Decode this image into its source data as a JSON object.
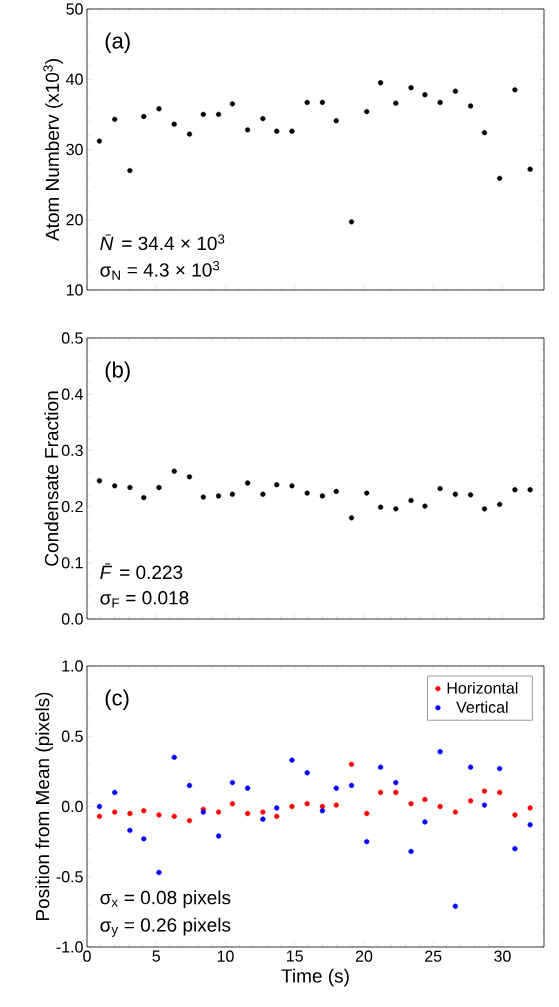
{
  "chart_data": [
    {
      "type": "scatter",
      "ylabel": "Atom Numberv (x10$^{3}$)",
      "annotations": [
        "(a)",
        "*N̄* = 34.4 × 10$^{3}$",
        "σ$_{N}$ = 4.3 × 10$^{3}$"
      ],
      "marker": "circle",
      "tick_labels": "y",
      "x": [
        0.9,
        2.0,
        3.1,
        4.1,
        5.2,
        6.3,
        7.4,
        8.4,
        9.5,
        10.5,
        11.6,
        12.7,
        13.7,
        14.8,
        15.9,
        17.0,
        18.0,
        19.1,
        20.2,
        21.2,
        22.3,
        23.4,
        24.4,
        25.5,
        26.6,
        27.7,
        28.7,
        29.8,
        30.9,
        32.0
      ],
      "xlim": [
        0,
        33
      ],
      "xticks": [
        0,
        5,
        10,
        15,
        20,
        25,
        30
      ],
      "ylim": [
        10,
        50
      ],
      "yticks": [
        10,
        20,
        30,
        40,
        50
      ],
      "series": [
        {
          "color": "#000000",
          "values": [
            31.2,
            34.3,
            27.0,
            34.7,
            35.8,
            33.6,
            32.2,
            35.0,
            35.0,
            36.5,
            32.8,
            34.4,
            32.6,
            32.6,
            36.7,
            36.7,
            34.1,
            19.7,
            35.4,
            39.5,
            36.6,
            38.8,
            37.8,
            36.7,
            38.3,
            36.2,
            32.4,
            25.9,
            38.5,
            27.2
          ]
        }
      ]
    },
    {
      "type": "scatter",
      "ylabel": "Condensate Fraction",
      "annotations": [
        "(b)",
        "*F̄* = 0.223",
        "σ$_{F}$ = 0.018"
      ],
      "marker": "circle",
      "tick_labels": "y",
      "x": [
        0.9,
        2.0,
        3.1,
        4.1,
        5.2,
        6.3,
        7.4,
        8.4,
        9.5,
        10.5,
        11.6,
        12.7,
        13.7,
        14.8,
        15.9,
        17.0,
        18.0,
        19.1,
        20.2,
        21.2,
        22.3,
        23.4,
        24.4,
        25.5,
        26.6,
        27.7,
        28.7,
        29.8,
        30.9,
        32.0
      ],
      "xlim": [
        0,
        33
      ],
      "xticks": [
        0,
        5,
        10,
        15,
        20,
        25,
        30
      ],
      "ylim": [
        0,
        0.5
      ],
      "yticks": [
        {
          "value": 0,
          "label": "0.0"
        },
        0.1,
        0.2,
        0.3,
        0.4,
        0.5
      ],
      "series": [
        {
          "color": "#000000",
          "values": [
            0.246,
            0.237,
            0.234,
            0.216,
            0.234,
            0.263,
            0.253,
            0.217,
            0.219,
            0.222,
            0.242,
            0.222,
            0.239,
            0.237,
            0.224,
            0.219,
            0.227,
            0.18,
            0.224,
            0.199,
            0.196,
            0.211,
            0.201,
            0.232,
            0.222,
            0.221,
            0.196,
            0.204,
            0.23,
            0.23
          ]
        }
      ]
    },
    {
      "type": "scatter",
      "xlabel": "Time (s)",
      "ylabel": "Position from Mean (pixels)",
      "annotations": [
        "(c)",
        "σ$_{x}$ = 0.08 pixels",
        "σ$_{y}$ = 0.26 pixels"
      ],
      "marker": "circle",
      "legend": "top right",
      "x": [
        0.9,
        2.0,
        3.1,
        4.1,
        5.2,
        6.3,
        7.4,
        8.4,
        9.5,
        10.5,
        11.6,
        12.7,
        13.7,
        14.8,
        15.9,
        17.0,
        18.0,
        19.1,
        20.2,
        21.2,
        22.3,
        23.4,
        24.4,
        25.5,
        26.6,
        27.7,
        28.7,
        29.8,
        30.9,
        32.0
      ],
      "xlim": [
        0,
        33
      ],
      "xticks": [
        0,
        5,
        10,
        15,
        20,
        25,
        30
      ],
      "ylim": [
        -1,
        1
      ],
      "yticks": [
        {
          "value": -1,
          "label": "-1.0"
        },
        -0.5,
        {
          "value": 0,
          "label": "0.0"
        },
        0.5,
        {
          "value": 1,
          "label": "1.0"
        }
      ],
      "series": [
        {
          "name": "Horizontal",
          "color": "#ff0000",
          "values": [
            -0.07,
            -0.04,
            -0.05,
            -0.03,
            -0.06,
            -0.07,
            -0.1,
            -0.02,
            -0.04,
            0.02,
            -0.05,
            -0.04,
            -0.07,
            0.0,
            0.02,
            0.0,
            0.01,
            0.3,
            -0.05,
            0.1,
            0.1,
            0.02,
            0.05,
            0.0,
            -0.04,
            0.04,
            0.11,
            0.1,
            -0.06,
            -0.01
          ]
        },
        {
          "name": "Vertical",
          "color": "#0000ff",
          "values": [
            0.0,
            0.1,
            -0.17,
            -0.23,
            -0.47,
            0.35,
            0.15,
            -0.04,
            -0.21,
            0.17,
            0.13,
            -0.09,
            -0.01,
            0.33,
            0.24,
            -0.03,
            0.13,
            0.15,
            -0.25,
            0.28,
            0.17,
            -0.32,
            -0.11,
            0.39,
            -0.71,
            0.28,
            0.01,
            0.27,
            -0.3,
            -0.13
          ]
        }
      ]
    }
  ]
}
